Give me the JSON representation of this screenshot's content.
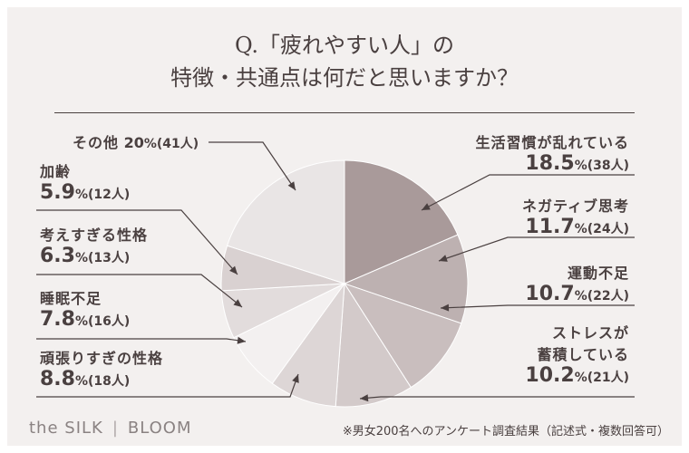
{
  "title": {
    "line1": "Q.「疲れやすい人」の",
    "line2": "特徴・共通点は何だと思いますか？"
  },
  "chart_data": {
    "type": "pie",
    "slices": [
      {
        "label": "生活習慣が乱れている",
        "pct": "18.5",
        "count": "(38人)",
        "value": 18.5,
        "color": "#a99a9a"
      },
      {
        "label": "ネガティブ思考",
        "pct": "11.7",
        "count": "(24人)",
        "value": 11.7,
        "color": "#bdb1b1"
      },
      {
        "label": "運動不足",
        "pct": "10.7",
        "count": "(22人)",
        "value": 10.7,
        "color": "#c9bebe"
      },
      {
        "label": "ストレスが蓄積している",
        "pct": "10.2",
        "count": "(21人)",
        "value": 10.2,
        "color": "#d3caca"
      },
      {
        "label": "頑張りすぎの性格",
        "pct": "8.8",
        "count": "(18人)",
        "value": 8.8,
        "color": "#ddd6d6"
      },
      {
        "label": "睡眠不足",
        "pct": "7.8",
        "count": "(16人)",
        "value": 7.8,
        "color": "#f3f0f0"
      },
      {
        "label": "考えすぎる性格",
        "pct": "6.3",
        "count": "(13人)",
        "value": 6.3,
        "color": "#e2dcdc"
      },
      {
        "label": "加齢",
        "pct": "5.9",
        "count": "(12人)",
        "value": 5.9,
        "color": "#d9d1d1"
      },
      {
        "label": "その他",
        "pct": "20",
        "count": "(41人)",
        "value": 20,
        "color": "#e9e5e5"
      }
    ]
  },
  "labels": {
    "s0_name": "生活習慣が乱れている",
    "s1_name": "ネガティブ思考",
    "s2_name": "運動不足",
    "s3_name_a": "ストレスが",
    "s3_name_b": "蓄積している",
    "s4_name": "頑張りすぎの性格",
    "s5_name": "睡眠不足",
    "s6_name": "考えすぎる性格",
    "s7_name": "加齢",
    "s8_name": "その他",
    "pct_unit": "%"
  },
  "footer": {
    "brand_left": "the SILK",
    "brand_sep": "|",
    "brand_right": "BLOOM",
    "note": "※男女200名へのアンケート調査結果（記述式・複数回答可）"
  }
}
